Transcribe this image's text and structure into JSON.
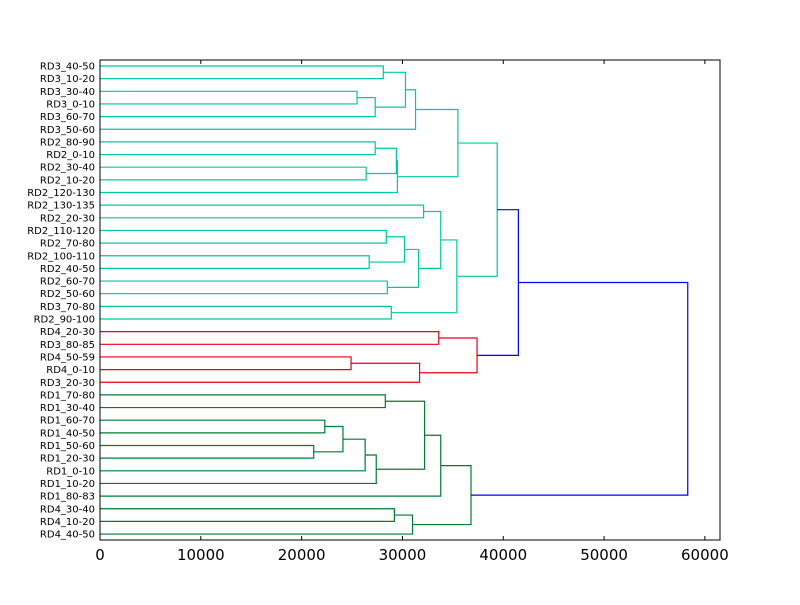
{
  "chart_data": {
    "type": "dendrogram",
    "orientation": "horizontal",
    "title": "",
    "xlabel": "",
    "ylabel": "",
    "xlim": [
      0,
      61500
    ],
    "x_ticks": [
      0,
      10000,
      20000,
      30000,
      40000,
      50000,
      60000
    ],
    "x_tick_labels": [
      "0",
      "10000",
      "20000",
      "30000",
      "40000",
      "50000",
      "60000"
    ],
    "grid": false,
    "colors": {
      "cluster_cyan": "#00c8a0",
      "cluster_red": "#e8001c",
      "cluster_green": "#007a33",
      "above_threshold": "#0000ee",
      "axis": "#000000"
    },
    "leaves": [
      "RD3_40-50",
      "RD3_10-20",
      "RD3_30-40",
      "RD3_0-10",
      "RD3_60-70",
      "RD3_50-60",
      "RD2_80-90",
      "RD2_0-10",
      "RD2_30-40",
      "RD2_10-20",
      "RD2_120-130",
      "RD2_130-135",
      "RD2_20-30",
      "RD2_110-120",
      "RD2_70-80",
      "RD2_100-110",
      "RD2_40-50",
      "RD2_60-70",
      "RD2_50-60",
      "RD3_70-80",
      "RD2_90-100",
      "RD4_20-30",
      "RD3_80-85",
      "RD4_50-59",
      "RD4_0-10",
      "RD3_20-30",
      "RD1_70-80",
      "RD1_30-40",
      "RD1_60-70",
      "RD1_40-50",
      "RD1_50-60",
      "RD1_20-30",
      "RD1_0-10",
      "RD1_10-20",
      "RD1_80-83",
      "RD4_30-40",
      "RD4_10-20",
      "RD4_40-50"
    ],
    "merges": [
      {
        "id": "c1",
        "left": "RD3_40-50",
        "right": "RD3_10-20",
        "distance": 28100,
        "color": "cluster_cyan"
      },
      {
        "id": "c2",
        "left": "RD3_30-40",
        "right": "RD3_0-10",
        "distance": 25500,
        "color": "cluster_cyan"
      },
      {
        "id": "c3",
        "left": "c2",
        "right": "RD3_60-70",
        "distance": 27300,
        "color": "cluster_cyan"
      },
      {
        "id": "c4",
        "left": "c1",
        "right": "c3",
        "distance": 30300,
        "color": "cluster_cyan"
      },
      {
        "id": "c5",
        "left": "c4",
        "right": "RD3_50-60",
        "distance": 31300,
        "color": "cluster_cyan"
      },
      {
        "id": "c6",
        "left": "RD2_80-90",
        "right": "RD2_0-10",
        "distance": 27300,
        "color": "cluster_cyan"
      },
      {
        "id": "c7",
        "left": "RD2_30-40",
        "right": "RD2_10-20",
        "distance": 26400,
        "color": "cluster_cyan"
      },
      {
        "id": "c8",
        "left": "c6",
        "right": "c7",
        "distance": 29400,
        "color": "cluster_cyan"
      },
      {
        "id": "c9",
        "left": "c8",
        "right": "RD2_120-130",
        "distance": 29500,
        "color": "cluster_cyan"
      },
      {
        "id": "c10",
        "left": "c5",
        "right": "c9",
        "distance": 35500,
        "color": "cluster_cyan"
      },
      {
        "id": "c11",
        "left": "RD2_130-135",
        "right": "RD2_20-30",
        "distance": 32100,
        "color": "cluster_cyan"
      },
      {
        "id": "c12",
        "left": "RD2_110-120",
        "right": "RD2_70-80",
        "distance": 28400,
        "color": "cluster_cyan"
      },
      {
        "id": "c13",
        "left": "RD2_100-110",
        "right": "RD2_40-50",
        "distance": 26700,
        "color": "cluster_cyan"
      },
      {
        "id": "c14",
        "left": "c12",
        "right": "c13",
        "distance": 30200,
        "color": "cluster_cyan"
      },
      {
        "id": "c15",
        "left": "RD2_60-70",
        "right": "RD2_50-60",
        "distance": 28500,
        "color": "cluster_cyan"
      },
      {
        "id": "c16",
        "left": "c14",
        "right": "c15",
        "distance": 31600,
        "color": "cluster_cyan"
      },
      {
        "id": "c17",
        "left": "c11",
        "right": "c16",
        "distance": 33800,
        "color": "cluster_cyan"
      },
      {
        "id": "c18",
        "left": "RD3_70-80",
        "right": "RD2_90-100",
        "distance": 28900,
        "color": "cluster_cyan"
      },
      {
        "id": "c19",
        "left": "c17",
        "right": "c18",
        "distance": 35400,
        "color": "cluster_cyan"
      },
      {
        "id": "c20",
        "left": "c10",
        "right": "c19",
        "distance": 39400,
        "color": "cluster_cyan"
      },
      {
        "id": "c21",
        "left": "RD4_20-30",
        "right": "RD3_80-85",
        "distance": 33600,
        "color": "cluster_red"
      },
      {
        "id": "c22",
        "left": "RD4_50-59",
        "right": "RD4_0-10",
        "distance": 24900,
        "color": "cluster_red"
      },
      {
        "id": "c23",
        "left": "c22",
        "right": "RD3_20-30",
        "distance": 31700,
        "color": "cluster_red"
      },
      {
        "id": "c24",
        "left": "c21",
        "right": "c23",
        "distance": 37400,
        "color": "cluster_red"
      },
      {
        "id": "c25",
        "left": "c20",
        "right": "c24",
        "distance": 41500,
        "color": "above_threshold"
      },
      {
        "id": "c26",
        "left": "RD1_60-70",
        "right": "RD1_40-50",
        "distance": 22300,
        "color": "cluster_green"
      },
      {
        "id": "c27",
        "left": "RD1_50-60",
        "right": "RD1_20-30",
        "distance": 21200,
        "color": "cluster_green"
      },
      {
        "id": "c28",
        "left": "c26",
        "right": "c27",
        "distance": 24100,
        "color": "cluster_green"
      },
      {
        "id": "c29",
        "left": "c28",
        "right": "RD1_0-10",
        "distance": 26300,
        "color": "cluster_green"
      },
      {
        "id": "c30",
        "left": "c29",
        "right": "RD1_10-20",
        "distance": 27400,
        "color": "cluster_green"
      },
      {
        "id": "c31",
        "left": "RD1_70-80",
        "right": "RD1_30-40",
        "distance": 28300,
        "color": "cluster_green"
      },
      {
        "id": "c32",
        "left": "c31",
        "right": "c30",
        "distance": 32200,
        "color": "cluster_green"
      },
      {
        "id": "c33",
        "left": "c32",
        "right": "RD1_80-83",
        "distance": 33800,
        "color": "cluster_green"
      },
      {
        "id": "c34",
        "left": "RD4_30-40",
        "right": "RD4_10-20",
        "distance": 29200,
        "color": "cluster_green"
      },
      {
        "id": "c35",
        "left": "c34",
        "right": "RD4_40-50",
        "distance": 31000,
        "color": "cluster_green"
      },
      {
        "id": "c36",
        "left": "c33",
        "right": "c35",
        "distance": 36800,
        "color": "cluster_green"
      },
      {
        "id": "c37",
        "left": "c25",
        "right": "c36",
        "distance": 58300,
        "color": "above_threshold"
      }
    ]
  }
}
